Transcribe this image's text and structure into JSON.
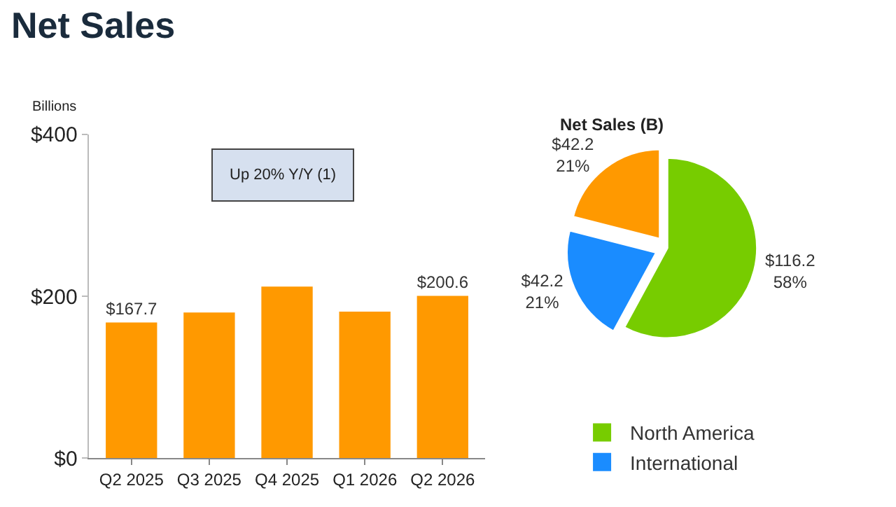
{
  "chart_data": [
    {
      "type": "bar",
      "title": "Net Sales",
      "ylabel": "Billions",
      "categories": [
        "Q2 2025",
        "Q3 2025",
        "Q4 2025",
        "Q1 2026",
        "Q2 2026"
      ],
      "values": [
        167.7,
        180,
        212,
        181,
        200.6
      ],
      "color": "#ff9900",
      "value_labels": [
        "$167.7",
        null,
        null,
        null,
        "$200.6"
      ],
      "ylim": [
        0,
        400
      ],
      "yticks": [
        {
          "value": 0,
          "label": "$0"
        },
        {
          "value": 200,
          "label": "$200"
        },
        {
          "value": 400,
          "label": "$400"
        }
      ],
      "annotations": [
        "Up 20% Y/Y (1)"
      ],
      "legend": false
    },
    {
      "type": "pie",
      "title": "Net Sales (B)",
      "categories": [
        "North America",
        "International",
        null
      ],
      "values": [
        116.2,
        42.2,
        42.2
      ],
      "colors": [
        "#77cc00",
        "#1a8cff",
        "#ff9900"
      ],
      "value_labels": [
        "$116.2\n58%",
        "$42.2\n21%",
        "$42.2\n21%"
      ],
      "legend": "bottom"
    }
  ]
}
